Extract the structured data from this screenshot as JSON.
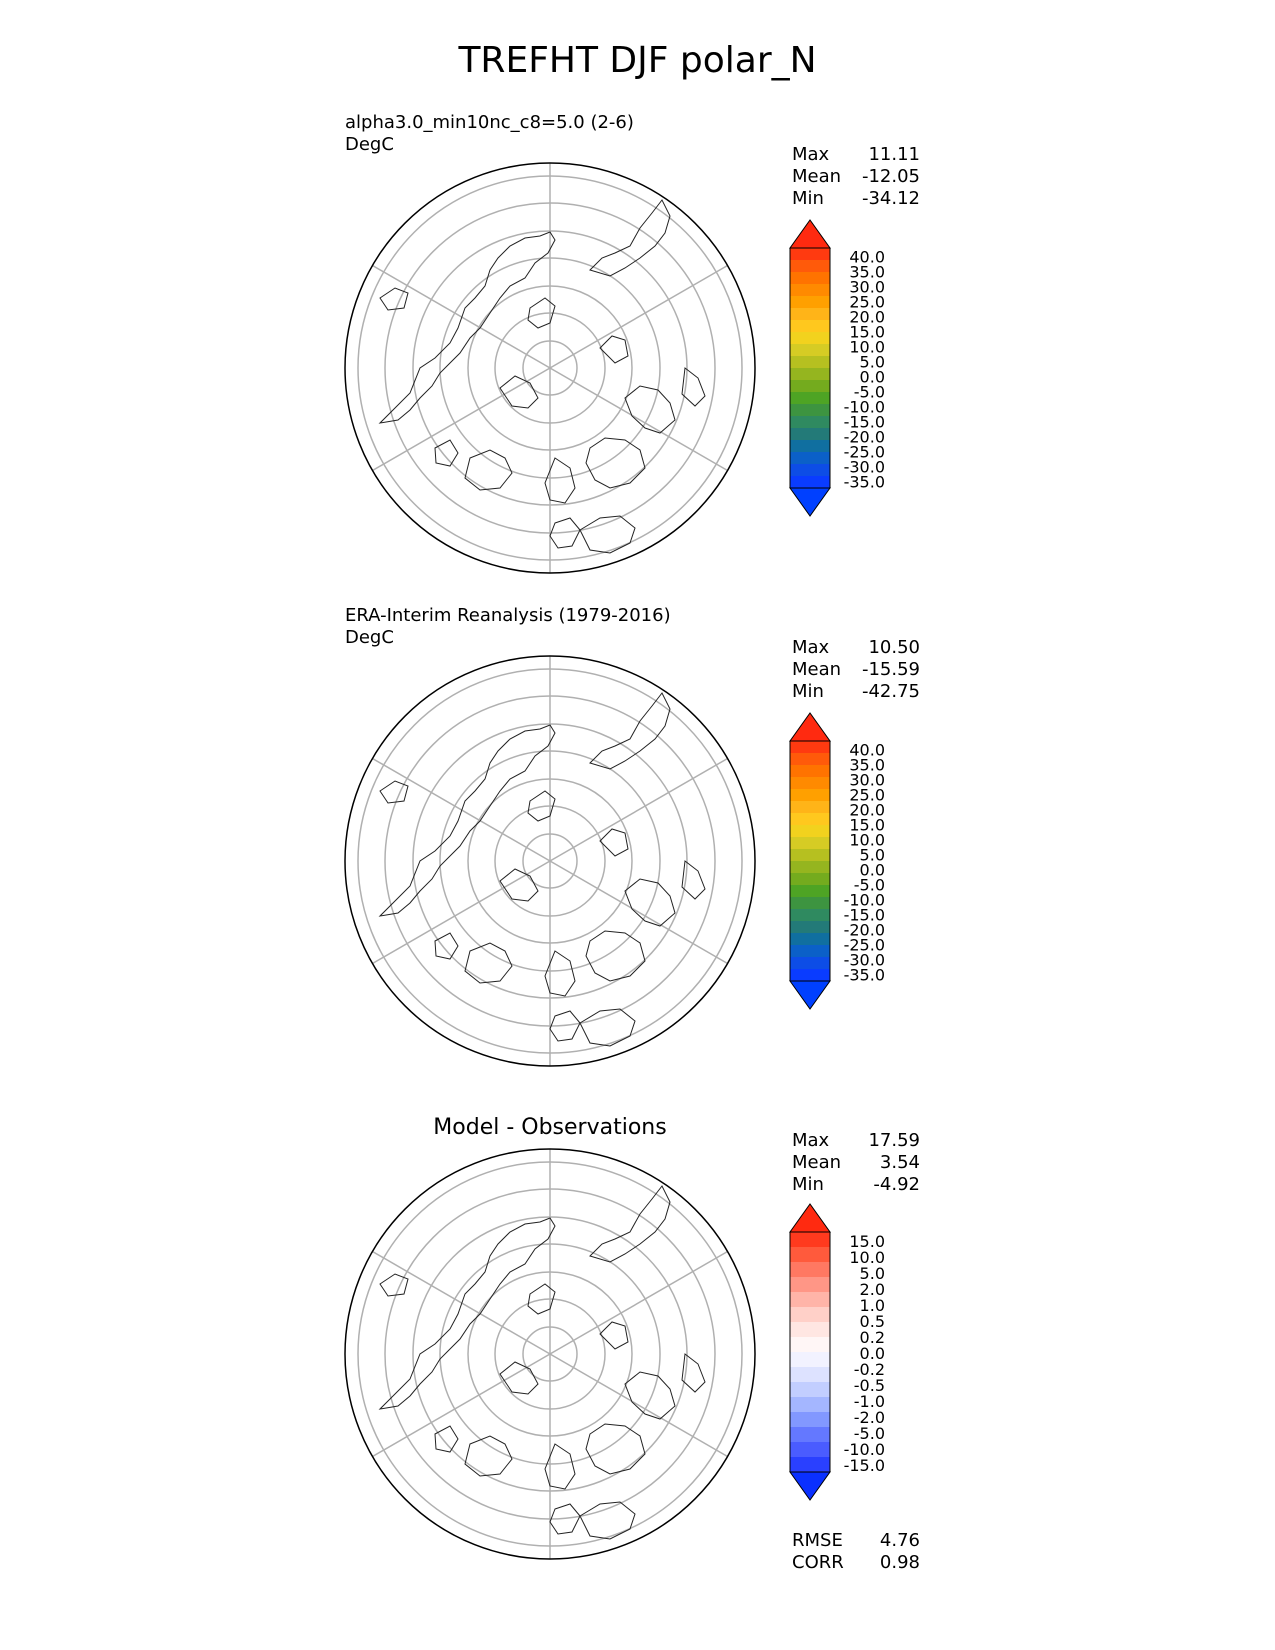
{
  "title": "TREFHT DJF polar_N",
  "panels": [
    {
      "id": "test",
      "title_line1": "alpha3.0_min10nc_c8=5.0 (2-6)",
      "title_line2": "DegC",
      "stats": {
        "max_label": "Max",
        "max": "11.11",
        "mean_label": "Mean",
        "mean": "-12.05",
        "min_label": "Min",
        "min": "-34.12"
      },
      "colorbar": {
        "ticks": [
          "40.0",
          "35.0",
          "30.0",
          "25.0",
          "20.0",
          "15.0",
          "10.0",
          "5.0",
          "0.0",
          "-5.0",
          "-10.0",
          "-15.0",
          "-20.0",
          "-25.0",
          "-30.0",
          "-35.0"
        ],
        "colors": [
          "#ff3a10",
          "#ff5a0a",
          "#ff7300",
          "#ff8a00",
          "#ffa000",
          "#ffb418",
          "#ffc81e",
          "#f2d21e",
          "#d6cc24",
          "#b6c020",
          "#95b51f",
          "#74ab1e",
          "#4ea424",
          "#3d9440",
          "#2f8a60",
          "#237a78",
          "#106fa0",
          "#0b60c8",
          "#0d4de6",
          "#0a3cff"
        ],
        "over_color": "#ff2a10",
        "under_color": "#0040ff"
      }
    },
    {
      "id": "ref",
      "title_line1": "ERA-Interim Reanalysis (1979-2016)",
      "title_line2": "DegC",
      "stats": {
        "max_label": "Max",
        "max": "10.50",
        "mean_label": "Mean",
        "mean": "-15.59",
        "min_label": "Min",
        "min": "-42.75"
      },
      "colorbar": {
        "ticks": [
          "40.0",
          "35.0",
          "30.0",
          "25.0",
          "20.0",
          "15.0",
          "10.0",
          "5.0",
          "0.0",
          "-5.0",
          "-10.0",
          "-15.0",
          "-20.0",
          "-25.0",
          "-30.0",
          "-35.0"
        ],
        "colors": [
          "#ff3a10",
          "#ff5a0a",
          "#ff7300",
          "#ff8a00",
          "#ffa000",
          "#ffb418",
          "#ffc81e",
          "#f2d21e",
          "#d6cc24",
          "#b6c020",
          "#95b51f",
          "#74ab1e",
          "#4ea424",
          "#3d9440",
          "#2f8a60",
          "#237a78",
          "#106fa0",
          "#0b60c8",
          "#0d4de6",
          "#0a3cff"
        ],
        "over_color": "#ff2a10",
        "under_color": "#0040ff"
      }
    },
    {
      "id": "diff",
      "title_center": "Model - Observations",
      "stats": {
        "max_label": "Max",
        "max": "17.59",
        "mean_label": "Mean",
        "mean": "3.54",
        "min_label": "Min",
        "min": "-4.92"
      },
      "colorbar": {
        "ticks": [
          "15.0",
          "10.0",
          "5.0",
          "2.0",
          "1.0",
          "0.5",
          "0.2",
          "0.0",
          "-0.2",
          "-0.5",
          "-1.0",
          "-2.0",
          "-5.0",
          "-10.0",
          "-15.0"
        ],
        "colors": [
          "#ff3a1e",
          "#ff5a3c",
          "#ff7862",
          "#ff9686",
          "#ffb4a8",
          "#ffd0c8",
          "#ffe6e2",
          "#fff6f6",
          "#f2f2ff",
          "#dde2ff",
          "#c2ceff",
          "#a4b6ff",
          "#8298ff",
          "#6478ff",
          "#4a5cff",
          "#2a40ff"
        ],
        "over_color": "#ff2a10",
        "under_color": "#0a30ff"
      }
    }
  ],
  "footer": {
    "rmse_label": "RMSE",
    "rmse": "4.76",
    "corr_label": "CORR",
    "corr": "0.98"
  }
}
